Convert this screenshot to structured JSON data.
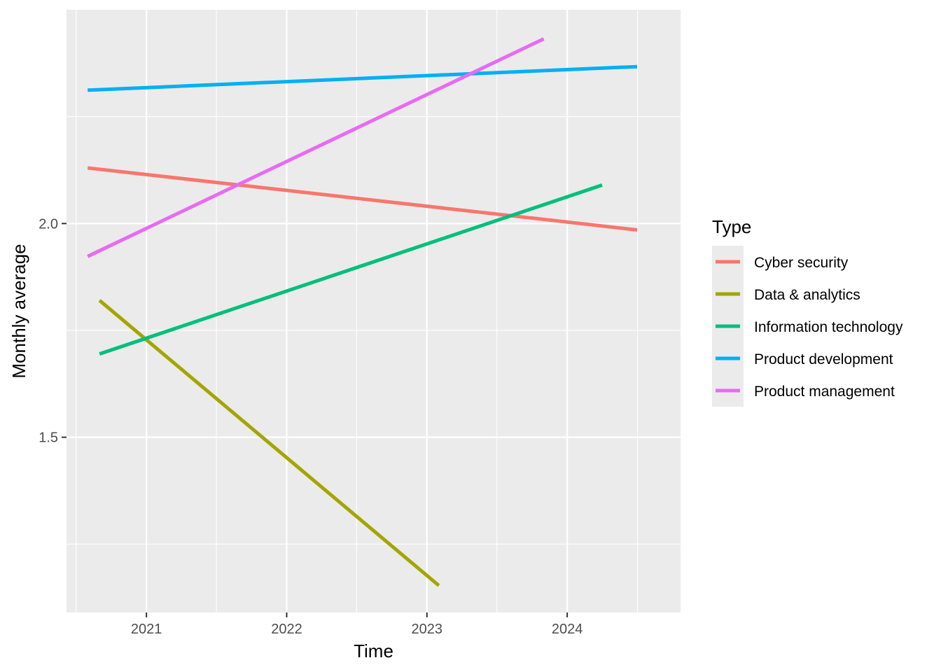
{
  "chart_data": {
    "type": "line",
    "xlabel": "Time",
    "ylabel": "Monthly average",
    "x_ticks": [
      "2021",
      "2022",
      "2023",
      "2024"
    ],
    "y_ticks": [
      "1.5",
      "2.0"
    ],
    "xlim": [
      "2020-06-07",
      "2024-10-22"
    ],
    "ylim": [
      1.09,
      2.5
    ],
    "grid": true,
    "legend": {
      "title": "Type",
      "position": "right"
    },
    "series": [
      {
        "name": "Cyber security",
        "color": "#F8766D",
        "x": [
          "2020-08-01",
          "2024-07-01"
        ],
        "y": [
          2.13,
          1.985
        ]
      },
      {
        "name": "Data & analytics",
        "color": "#A3A500",
        "x": [
          "2020-09-01",
          "2023-02-01"
        ],
        "y": [
          1.82,
          1.153
        ]
      },
      {
        "name": "Information technology",
        "color": "#00BF7D",
        "x": [
          "2020-09-01",
          "2024-04-01"
        ],
        "y": [
          1.695,
          2.09
        ]
      },
      {
        "name": "Product development",
        "color": "#00B0F6",
        "x": [
          "2020-08-01",
          "2024-07-01"
        ],
        "y": [
          2.312,
          2.367
        ]
      },
      {
        "name": "Product management",
        "color": "#E76BF3",
        "x": [
          "2020-08-01",
          "2023-11-01"
        ],
        "y": [
          1.923,
          2.432
        ]
      }
    ]
  }
}
